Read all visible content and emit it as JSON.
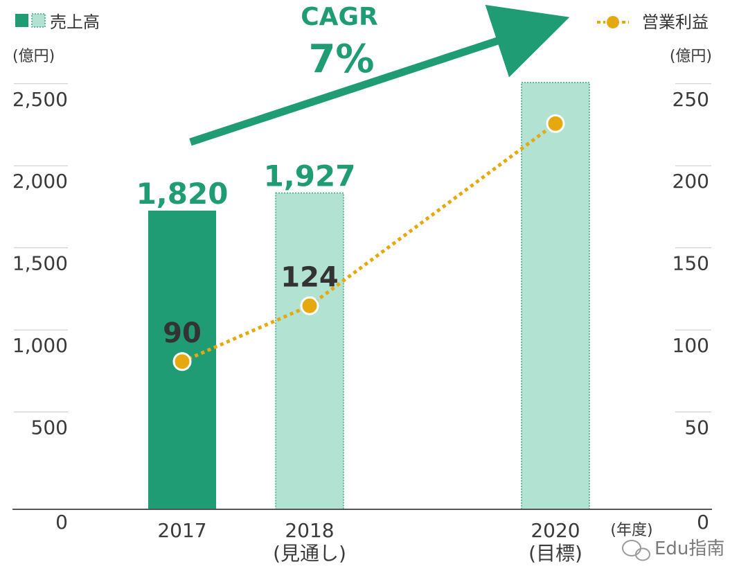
{
  "chart_data": {
    "type": "bar",
    "categories": [
      "2017",
      "2018",
      "2020"
    ],
    "category_sublabels": [
      "",
      "(見通し)",
      "(目標)"
    ],
    "x_unit": "(年度)",
    "series": [
      {
        "name": "売上高",
        "type": "bar",
        "axis": "left",
        "values": [
          1820,
          1927,
          2600
        ],
        "data_labels": [
          "1,820",
          "1,927",
          ""
        ],
        "styles": [
          "solid",
          "light",
          "light"
        ]
      },
      {
        "name": "営業利益",
        "type": "line",
        "axis": "right",
        "values": [
          90,
          124,
          235
        ],
        "data_labels": [
          "90",
          "124",
          ""
        ]
      }
    ],
    "y_left": {
      "unit": "(億円)",
      "ylim": [
        0,
        2500
      ],
      "ticks": [
        0,
        500,
        1000,
        1500,
        2000,
        2500
      ],
      "tick_labels": [
        "0",
        "500",
        "1,000",
        "1,500",
        "2,000",
        "2,500"
      ]
    },
    "y_right": {
      "unit": "(億円)",
      "ylim": [
        0,
        250
      ],
      "ticks": [
        0,
        50,
        100,
        150,
        200,
        250
      ],
      "tick_labels": [
        "0",
        "50",
        "100",
        "150",
        "200",
        "250"
      ]
    },
    "annotation": {
      "line1": "CAGR",
      "line2": "7%"
    },
    "legend_placement": "top",
    "grid": false,
    "colors": {
      "bar_solid": "#1f9c73",
      "bar_light": "#b2e2d2",
      "bar_light_border": "#3aa882",
      "line": "#e6a80f",
      "arrow": "#1f9c73",
      "axis": "#555555"
    }
  },
  "watermark": "Edu指南"
}
